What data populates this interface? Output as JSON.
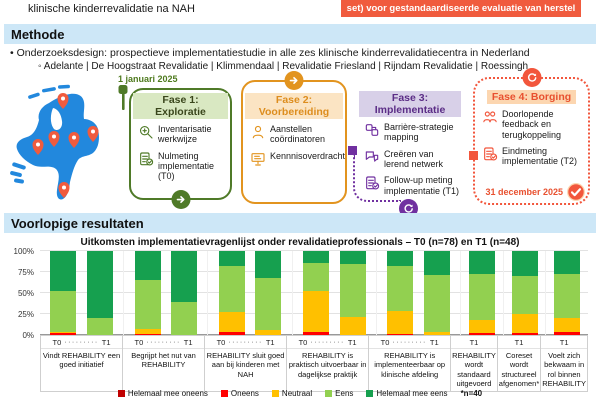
{
  "header": {
    "left_text": "klinische kinderrevalidatie na NAH",
    "banner_text": "set) voor gestandaardiseerde evaluatie van herstel"
  },
  "methode": {
    "title": "Methode",
    "bullet": "Onderzoeksdesign: prospectieve implementatiestudie in alle zes klinische kinderrevalidatiecentra in Nederland",
    "centers": "Adelante | De Hoogstraat Revalidatie | Klimmendaal | Revalidatie Friesland | Rijndam Revalidatie | Roessingh"
  },
  "timeline": {
    "start_date": "1 januari 2025",
    "end_date": "31 december 2025",
    "phases": [
      {
        "title": "Fase 1: Exploratie",
        "items": [
          "Inventarisatie werkwijze",
          "Nulmeting implementatie (T0)"
        ]
      },
      {
        "title": "Fase 2: Voorbereiding",
        "items": [
          "Aanstellen coördinatoren",
          "Kennnisoverdracht"
        ]
      },
      {
        "title": "Fase 3: Implementatie",
        "items": [
          "Barrière-strategie mapping",
          "Creëren van lerend netwerk",
          "Follow-up meting implementatie (T1)"
        ]
      },
      {
        "title": "Fase 4: Borging",
        "items": [
          "Doorlopende feedback en terugkoppeling",
          "Eindmeting implementatie (T2)"
        ]
      }
    ]
  },
  "results": {
    "title": "Voorlopige resultaten"
  },
  "chart_data": {
    "type": "bar",
    "stacked": true,
    "title": "Uitkomsten implementatievragenlijst onder revalidatieprofessionals – T0 (n=78) en T1 (n=48)",
    "ylim": [
      0,
      100
    ],
    "yticks": [
      "100%",
      "75%",
      "50%",
      "25%",
      "0%"
    ],
    "legend": [
      {
        "label": "Helemaal mee oneens",
        "color": "#c00000"
      },
      {
        "label": "Oneens",
        "color": "#ff0000"
      },
      {
        "label": "Neutraal",
        "color": "#ffc000"
      },
      {
        "label": "Eens",
        "color": "#92d050"
      },
      {
        "label": "Helemaal mee eens",
        "color": "#16a04f"
      }
    ],
    "footnote": "*n=40",
    "series_order": "bottom-to-top: Helemaal mee oneens, Oneens, Neutraal, Eens, Helemaal mee eens",
    "groups": [
      {
        "label": "Vindt REHABILITY een goed initiatief",
        "bars": [
          {
            "t": "T0",
            "values": [
              0,
              2,
              2,
              49,
              47
            ]
          },
          {
            "t": "T1",
            "values": [
              0,
              0,
              0,
              20,
              80
            ]
          }
        ]
      },
      {
        "label": "Begrijpt het nut van REHABILITY",
        "bars": [
          {
            "t": "T0",
            "values": [
              0,
              1,
              6,
              59,
              34
            ]
          },
          {
            "t": "T1",
            "values": [
              0,
              0,
              0,
              39,
              61
            ]
          }
        ]
      },
      {
        "label": "REHABILITY sluit goed aan bij kinderen met NAH",
        "bars": [
          {
            "t": "T0",
            "values": [
              0,
              3,
              24,
              55,
              18
            ]
          },
          {
            "t": "T1",
            "values": [
              0,
              0,
              6,
              62,
              32
            ]
          }
        ]
      },
      {
        "label": "REHABILITY is praktisch uitvoerbaar in dagelijkse praktijk",
        "bars": [
          {
            "t": "T0",
            "values": [
              0,
              3,
              49,
              34,
              14
            ]
          },
          {
            "t": "T1",
            "values": [
              0,
              0,
              21,
              63,
              16
            ]
          }
        ]
      },
      {
        "label": "REHABILITY is implementeerbaar op klinische afdeling",
        "bars": [
          {
            "t": "T0",
            "values": [
              0,
              1,
              28,
              53,
              18
            ]
          },
          {
            "t": "T1",
            "values": [
              0,
              0,
              4,
              68,
              28
            ]
          }
        ]
      },
      {
        "label": "REHABILITY wordt standaard uitgevoerd",
        "bars": [
          {
            "t": "T1",
            "values": [
              0,
              2,
              16,
              55,
              27
            ]
          }
        ]
      },
      {
        "label": "Coreset wordt structureel afgenomen*",
        "bars": [
          {
            "t": "T1",
            "values": [
              0,
              2,
              23,
              45,
              30
            ]
          }
        ]
      },
      {
        "label": "Voelt zich bekwaam in rol binnen REHABILITY",
        "bars": [
          {
            "t": "T1",
            "values": [
              0,
              3,
              17,
              53,
              27
            ]
          }
        ]
      }
    ]
  },
  "colors": {
    "banner": "#f05b3e",
    "section_bg": "#cde7f7",
    "date_green": "#4e7a1e",
    "phase1": "#4f7a28",
    "phase1_bg": "#d9e8c2",
    "phase1_text": "#3a461c",
    "phase2": "#e2941f",
    "phase2_bg": "#fbe4c3",
    "phase2_text": "#dd8d1e",
    "phase3": "#7030a0",
    "phase3_bg": "#d8d0e8",
    "phase3_text": "#5b2d86",
    "phase4": "#f2563c",
    "phase4_bg": "#fcd6b0",
    "phase4_text": "#e8502f",
    "map_blue": "#2288dd",
    "pin": "#f05b3e"
  }
}
